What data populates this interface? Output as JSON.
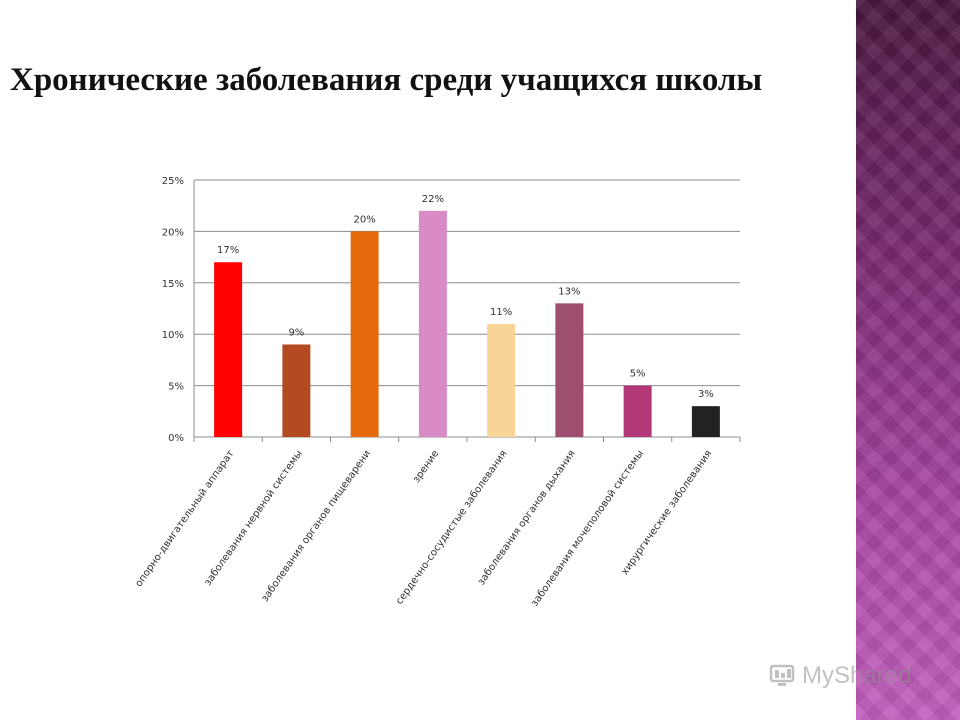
{
  "slide": {
    "title": "Хронические заболевания среди учащихся школы"
  },
  "watermark": {
    "text": "MyShared"
  },
  "colors": {
    "grid": "#8c8c8c",
    "axis_text": "#333333",
    "sidebar_top": "#4a1840",
    "sidebar_bottom": "#c35fbf"
  },
  "chart_data": {
    "type": "bar",
    "categories": [
      "опорно-двигательный аппарат",
      "заболевания нервной системы",
      "заболевания органов пищеварени",
      "зрение",
      "сердечно-сосудистые заболевания",
      "заболевания органов дыхания",
      "заболевания мочеполовой системы",
      "хирургические заболевания"
    ],
    "values": [
      17,
      9,
      20,
      22,
      11,
      13,
      5,
      3
    ],
    "data_labels": [
      "17%",
      "9%",
      "20%",
      "22%",
      "11%",
      "13%",
      "5%",
      "3%"
    ],
    "bar_colors": [
      "#ff0000",
      "#b34a22",
      "#e46a0c",
      "#d98bc6",
      "#f8d596",
      "#9e4f70",
      "#b2387a",
      "#222222"
    ],
    "yticks": [
      "0%",
      "5%",
      "10%",
      "15%",
      "20%",
      "25%"
    ],
    "ylim": [
      0,
      25
    ],
    "grid": true,
    "legend": "none"
  }
}
